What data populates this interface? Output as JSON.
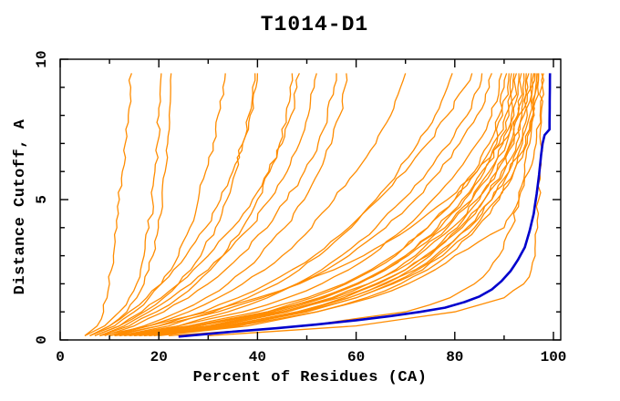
{
  "chart_data": {
    "type": "line",
    "title": "T1014-D1",
    "xlabel": "Percent of Residues (CA)",
    "ylabel": "Distance Cutoff, A",
    "xlim": [
      0,
      101.5
    ],
    "ylim": [
      0,
      10
    ],
    "x_major_ticks": [
      0,
      20,
      40,
      60,
      80,
      100
    ],
    "x_minor_ticks": [
      10,
      30,
      50,
      70,
      90
    ],
    "y_major_ticks": [
      0,
      5,
      10
    ],
    "y_minor_ticks": [
      1,
      2,
      3,
      4,
      6,
      7,
      8,
      9
    ],
    "grid": false,
    "legend_position": "none",
    "colors": {
      "model_curve": "#ff8c00",
      "highlighted_curve": "#0000cd",
      "axis": "#000000",
      "background": "#ffffff"
    },
    "cutoffs": [
      0.15,
      0.5,
      1,
      1.5,
      2,
      2.5,
      3,
      4,
      5,
      6,
      7,
      8,
      9,
      9.5
    ],
    "model_series": [
      {
        "percents": [
          5,
          7.5,
          8.8,
          9.5,
          10,
          10.4,
          10.8,
          11.5,
          12,
          12.6,
          13.2,
          13.8,
          14.3,
          14.5
        ]
      },
      {
        "percents": [
          5,
          9,
          12,
          14,
          15.5,
          16.3,
          17,
          18,
          18.7,
          19.2,
          19.7,
          20,
          20.3,
          20.5
        ]
      },
      {
        "percents": [
          6,
          10,
          13.5,
          15.5,
          17,
          18,
          18.8,
          19.9,
          20.7,
          21.3,
          21.8,
          22.1,
          22.4,
          22.5
        ]
      },
      {
        "percents": [
          6,
          11,
          15,
          18,
          20.5,
          22.5,
          24,
          26.3,
          28,
          29.5,
          31,
          32,
          33,
          33.5
        ]
      },
      {
        "percents": [
          7,
          12,
          17,
          21,
          24,
          26.5,
          28.5,
          31.5,
          33.8,
          35.6,
          37,
          38.2,
          39,
          39.5
        ]
      },
      {
        "percents": [
          6,
          10,
          14,
          17.5,
          20.5,
          23,
          25.5,
          29.5,
          32.5,
          35,
          37,
          38.5,
          39.7,
          40
        ]
      },
      {
        "percents": [
          8,
          14,
          19.5,
          24,
          27.5,
          30.5,
          33,
          37,
          40,
          42.5,
          44.5,
          45.8,
          46.6,
          47
        ]
      },
      {
        "percents": [
          7,
          12,
          16.5,
          20.5,
          24,
          27,
          30,
          35,
          39,
          42.3,
          45,
          46.8,
          48,
          48.5
        ]
      },
      {
        "percents": [
          8,
          13,
          18,
          22.5,
          26.5,
          30,
          33,
          38.5,
          42.5,
          46,
          48.5,
          50.3,
          51.5,
          52
        ]
      },
      {
        "percents": [
          9,
          15,
          21,
          26,
          30,
          33.5,
          36.5,
          42,
          46,
          49.5,
          52.3,
          54.2,
          55.5,
          56
        ]
      },
      {
        "percents": [
          10,
          17,
          24,
          29.5,
          34,
          37.5,
          40.5,
          45.5,
          49.5,
          52.5,
          55,
          56.7,
          57.7,
          58
        ]
      },
      {
        "percents": [
          10,
          18,
          26,
          32,
          37,
          41.5,
          45,
          51,
          55.5,
          60,
          64,
          67,
          69,
          70
        ]
      },
      {
        "percents": [
          12,
          22,
          31,
          38,
          44,
          48.5,
          52.5,
          59,
          64,
          68.5,
          72.5,
          76,
          78.5,
          79.5
        ]
      },
      {
        "percents": [
          11,
          20,
          29,
          36,
          42,
          47,
          51.5,
          58.5,
          64.5,
          70,
          74.5,
          78.5,
          82,
          83.5
        ]
      },
      {
        "percents": [
          13,
          24,
          34,
          42,
          48,
          53,
          57,
          64,
          69.5,
          74.5,
          79,
          82.5,
          85,
          85.5
        ]
      },
      {
        "percents": [
          10,
          20,
          32,
          41,
          48,
          54,
          58.5,
          66,
          72,
          77,
          81,
          84.5,
          87,
          87.5
        ]
      },
      {
        "percents": [
          12,
          24,
          37,
          46,
          53,
          58.5,
          63,
          70,
          75.5,
          80.5,
          84.5,
          87.5,
          89,
          89.5
        ]
      },
      {
        "percents": [
          14,
          28,
          42,
          51,
          58,
          63.5,
          68,
          74.5,
          80,
          84,
          87,
          89,
          90,
          90.5
        ]
      },
      {
        "percents": [
          11,
          26,
          40,
          50,
          57.5,
          63,
          67.5,
          74.5,
          80,
          84.5,
          87.8,
          89.7,
          90.7,
          91
        ]
      },
      {
        "percents": [
          15,
          30,
          44,
          53.5,
          60.5,
          66,
          70,
          76.5,
          81.5,
          85.5,
          88.5,
          90.3,
          91.2,
          91.5
        ]
      },
      {
        "percents": [
          13,
          28,
          43,
          53,
          60,
          65.5,
          70,
          77,
          82,
          86,
          89,
          91,
          91.8,
          92
        ]
      },
      {
        "percents": [
          16,
          32,
          46,
          55.5,
          62.5,
          68,
          72,
          78.5,
          83.5,
          87,
          89.8,
          91.5,
          92.3,
          92.5
        ]
      },
      {
        "percents": [
          12,
          27,
          42,
          52.5,
          60,
          66,
          70.5,
          78,
          83.5,
          87.5,
          90.5,
          92,
          92.8,
          93
        ]
      },
      {
        "percents": [
          17,
          34,
          48,
          57.5,
          64.5,
          70,
          74,
          80.5,
          85,
          88.5,
          91.2,
          92.7,
          93.4,
          93.5
        ]
      },
      {
        "percents": [
          14,
          30,
          45,
          55,
          62.5,
          68.5,
          72.5,
          79.5,
          84.5,
          88.5,
          91.5,
          93,
          93.8,
          94
        ]
      },
      {
        "percents": [
          18,
          35,
          49,
          58.5,
          65.5,
          71,
          75,
          81.5,
          86,
          89.5,
          92,
          93.6,
          94.3,
          94.5
        ]
      },
      {
        "percents": [
          15,
          31,
          46,
          56.5,
          64,
          70,
          74.5,
          81,
          86,
          90,
          92.5,
          94,
          94.8,
          95
        ]
      },
      {
        "percents": [
          19,
          36,
          50,
          60,
          67,
          72.5,
          76.5,
          83,
          87.5,
          91,
          93.3,
          94.7,
          95.3,
          95.5
        ]
      },
      {
        "percents": [
          16,
          33,
          48,
          58.5,
          66,
          72,
          76,
          82.5,
          87.5,
          91,
          93.7,
          95.2,
          95.8,
          96
        ]
      },
      {
        "percents": [
          20,
          38,
          52,
          62,
          69,
          74.5,
          78.5,
          84.5,
          89,
          92,
          94.4,
          95.8,
          96.4,
          96.5
        ]
      },
      {
        "percents": [
          17,
          34,
          49,
          60,
          67.5,
          73.5,
          77.5,
          84,
          88.5,
          92,
          94.7,
          96.1,
          96.8,
          97
        ]
      },
      {
        "percents": [
          22,
          50,
          70,
          79,
          84,
          87,
          89,
          91.5,
          93,
          94.2,
          95.2,
          96,
          96.6,
          96.8
        ]
      },
      {
        "percents": [
          18,
          36,
          52,
          63,
          70.5,
          76,
          80,
          90,
          93,
          95,
          96.5,
          97.3,
          97.8,
          98
        ]
      },
      {
        "percents": [
          30,
          60,
          80,
          90,
          94,
          95.5,
          96.3,
          96.8,
          97,
          97.2,
          97.4,
          97.5,
          97.6,
          97.6
        ]
      },
      {
        "percents": [
          8,
          18,
          30,
          40,
          48.5,
          55.5,
          61.5,
          71,
          78.5,
          84.5,
          89.5,
          93,
          95.5,
          96.2
        ]
      }
    ],
    "highlighted_series": {
      "points": [
        [
          24,
          0.12
        ],
        [
          34,
          0.28
        ],
        [
          44,
          0.42
        ],
        [
          52,
          0.55
        ],
        [
          60,
          0.7
        ],
        [
          67,
          0.85
        ],
        [
          73,
          1.0
        ],
        [
          78,
          1.15
        ],
        [
          82,
          1.35
        ],
        [
          85,
          1.55
        ],
        [
          87.5,
          1.8
        ],
        [
          89.5,
          2.1
        ],
        [
          91.3,
          2.45
        ],
        [
          92.8,
          2.85
        ],
        [
          94.2,
          3.3
        ],
        [
          95.2,
          3.9
        ],
        [
          96,
          4.5
        ],
        [
          96.6,
          5.2
        ],
        [
          97.1,
          5.9
        ],
        [
          97.5,
          6.6
        ],
        [
          97.8,
          7.0
        ],
        [
          98.2,
          7.3
        ],
        [
          99.2,
          7.5
        ],
        [
          99.3,
          9.5
        ]
      ]
    }
  }
}
